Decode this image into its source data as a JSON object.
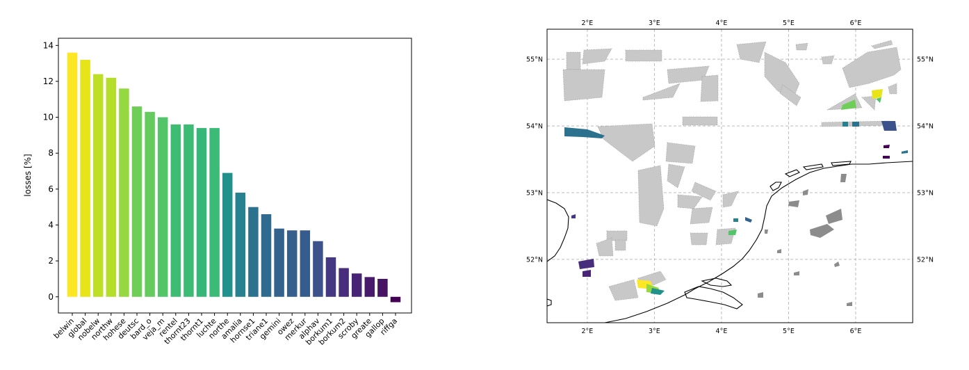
{
  "chart_data": [
    {
      "type": "bar",
      "ylabel": "losses [%]",
      "ylim": [
        -0.9,
        14.4
      ],
      "yticks": [
        0,
        2,
        4,
        6,
        8,
        10,
        12,
        14
      ],
      "categories": [
        "belwin",
        "global",
        "nobelw",
        "northw",
        "hohese",
        "deutsc",
        "bard_o",
        "veja_m",
        "rentel",
        "thornt23",
        "thornt1",
        "luchte",
        "northe",
        "amalia",
        "hornse1",
        "triane1",
        "gemini",
        "owez",
        "merkur",
        "alphav",
        "borkum1",
        "borkum2",
        "scroby",
        "greate",
        "gallop",
        "riffga"
      ],
      "values": [
        13.6,
        13.2,
        12.4,
        12.2,
        11.6,
        10.6,
        10.3,
        10.0,
        9.6,
        9.6,
        9.4,
        9.4,
        6.9,
        5.8,
        5.0,
        4.6,
        3.8,
        3.7,
        3.7,
        3.1,
        2.2,
        1.6,
        1.3,
        1.1,
        1.0,
        -0.3
      ],
      "colors": [
        "#fde725",
        "#e7e419",
        "#bddf26",
        "#b5de2b",
        "#95d840",
        "#6ece58",
        "#65cb5e",
        "#52c569",
        "#3fbc73",
        "#3dbb74",
        "#35b779",
        "#3bbb75",
        "#21918c",
        "#26828e",
        "#2c728e",
        "#306a8e",
        "#33628d",
        "#355f8d",
        "#365c8d",
        "#3b528b",
        "#453882",
        "#472d7b",
        "#482475",
        "#481a6c",
        "#471365",
        "#440154"
      ]
    },
    {
      "type": "map",
      "x_ticks": [
        "2°E",
        "3°E",
        "4°E",
        "5°E",
        "6°E"
      ],
      "y_ticks_left": [
        "55°N",
        "54°N",
        "53°N",
        "52°N"
      ],
      "y_ticks_right": [
        "55°N",
        "54°N",
        "53°N",
        "52°N"
      ],
      "lon_range": [
        1.4,
        6.85
      ],
      "lat_range": [
        51.05,
        55.45
      ],
      "grid": true,
      "colors": {
        "coast": "#000000",
        "area": "#999999",
        "grid": "#bbbbbb"
      }
    }
  ]
}
